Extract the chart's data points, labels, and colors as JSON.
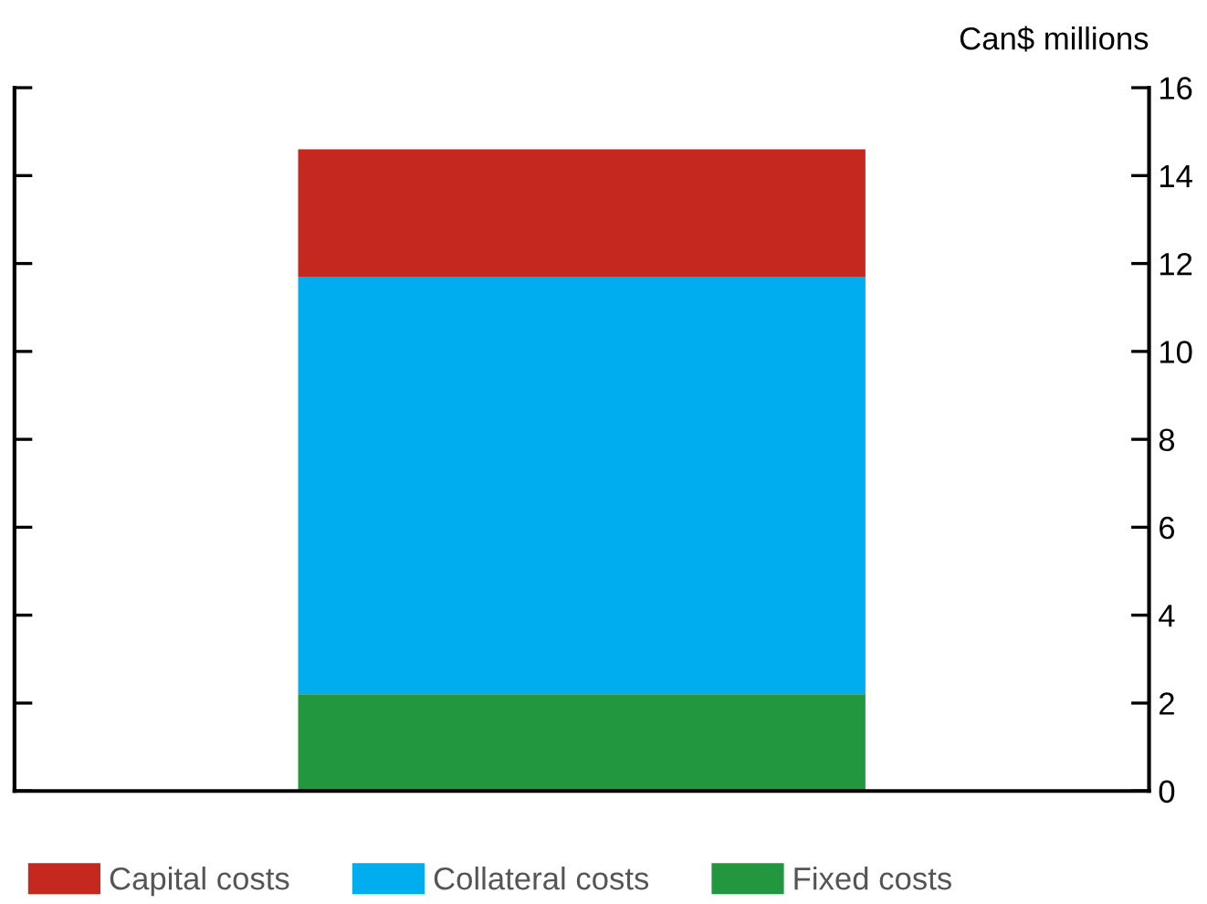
{
  "chart_data": {
    "type": "bar",
    "stacked": true,
    "categories": [
      null
    ],
    "series": [
      {
        "name": "Fixed costs",
        "color": "#239640",
        "values": [
          2.2
        ]
      },
      {
        "name": "Collateral costs",
        "color": "#00aeef",
        "values": [
          9.5
        ]
      },
      {
        "name": "Capital costs",
        "color": "#c4281f",
        "values": [
          2.9
        ]
      }
    ],
    "ylabel": "Can$ millions",
    "ylim": [
      0,
      16
    ],
    "yticks": [
      0,
      2,
      4,
      6,
      8,
      10,
      12,
      14,
      16
    ],
    "grid": false,
    "legend": "bottom"
  }
}
